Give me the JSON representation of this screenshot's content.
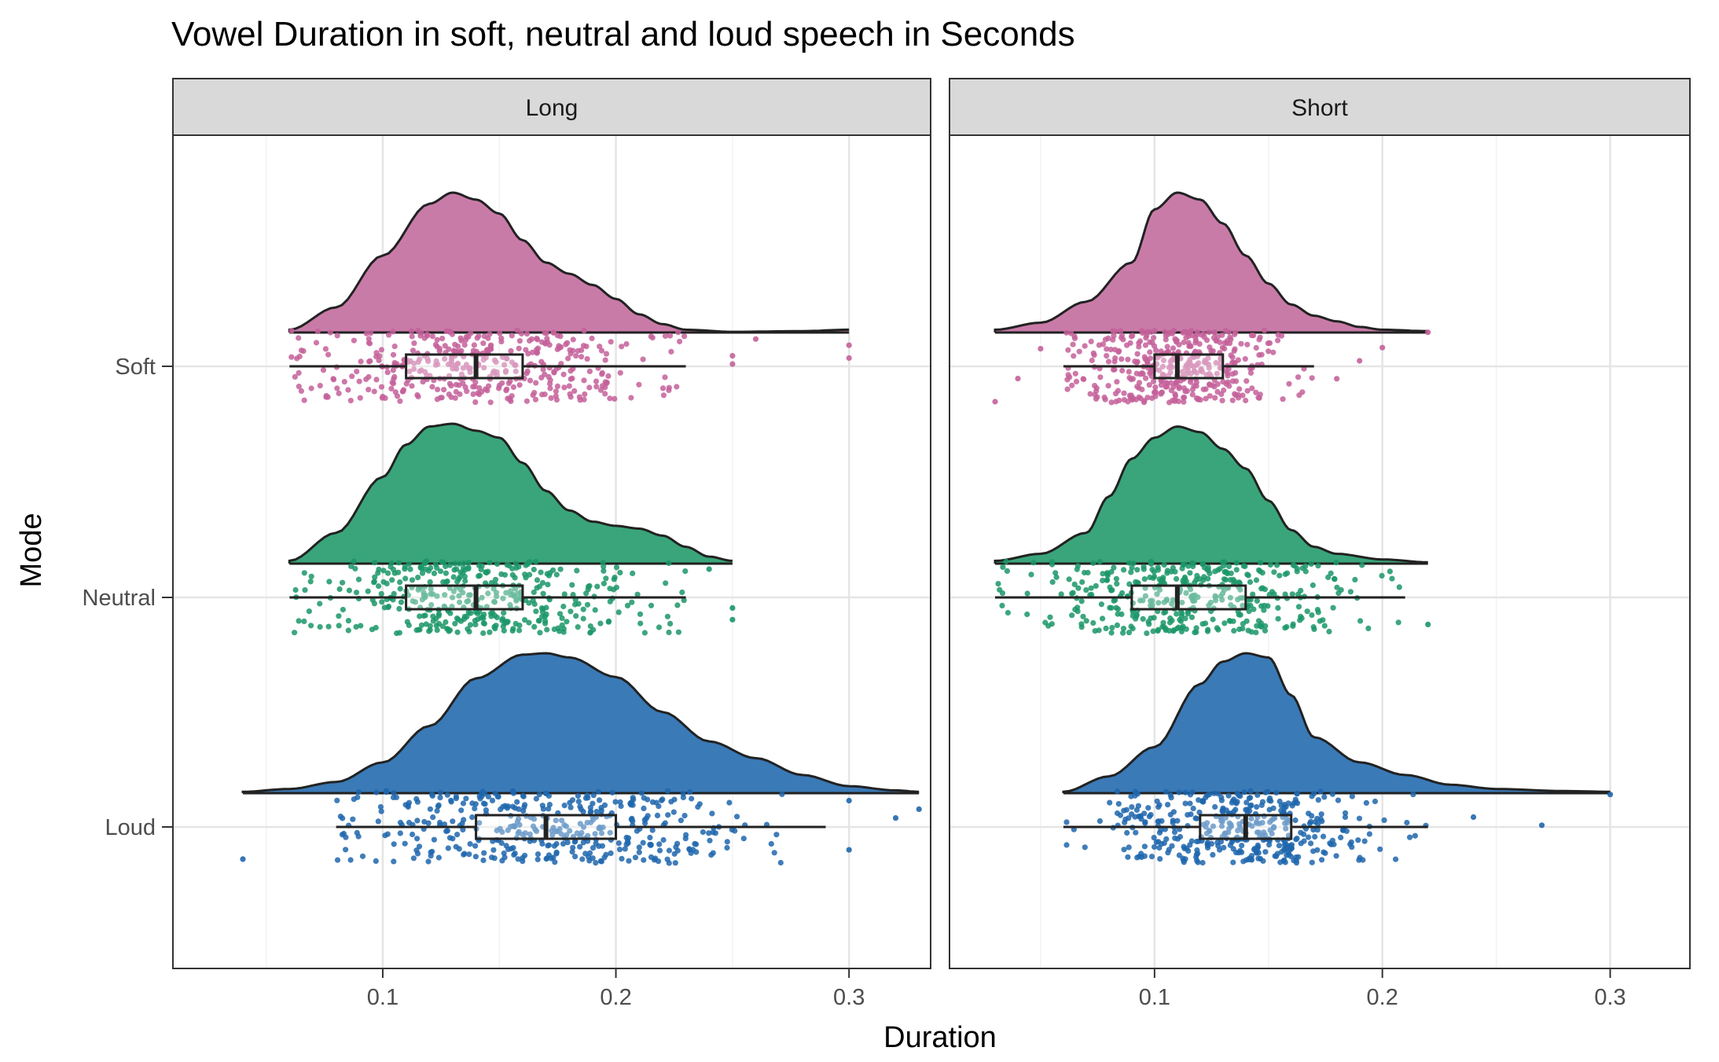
{
  "chart_data": {
    "type": "raincloud",
    "title": "Vowel Duration in soft, neutral and loud speech in Seconds",
    "xlabel": "Duration",
    "ylabel": "Mode",
    "xlim": [
      0.01,
      0.335
    ],
    "x_ticks": [
      0.1,
      0.2,
      0.3
    ],
    "x_tick_labels": [
      "0.1",
      "0.2",
      "0.3"
    ],
    "categories": [
      "Soft",
      "Neutral",
      "Loud"
    ],
    "colors": {
      "Soft": "#c4609a",
      "Neutral": "#1b9668",
      "Loud": "#1f66ad"
    },
    "cloud_colors": {
      "Soft": "#c97ba8",
      "Neutral": "#3aa57a",
      "Loud": "#3a7ab7"
    },
    "grid": true,
    "legend": "none",
    "panels": [
      {
        "label": "Long",
        "series": [
          {
            "name": "Soft",
            "box": {
              "whisker_low": 0.06,
              "q1": 0.11,
              "median": 0.14,
              "q3": 0.16,
              "whisker_high": 0.23
            },
            "density_range": [
              0.06,
              0.3
            ],
            "density_profile": [
              [
                0.06,
                0.02
              ],
              [
                0.08,
                0.18
              ],
              [
                0.1,
                0.55
              ],
              [
                0.12,
                0.92
              ],
              [
                0.13,
                1.0
              ],
              [
                0.14,
                0.95
              ],
              [
                0.15,
                0.85
              ],
              [
                0.16,
                0.66
              ],
              [
                0.17,
                0.5
              ],
              [
                0.18,
                0.42
              ],
              [
                0.19,
                0.34
              ],
              [
                0.2,
                0.24
              ],
              [
                0.21,
                0.13
              ],
              [
                0.22,
                0.06
              ],
              [
                0.23,
                0.02
              ],
              [
                0.25,
                0.005
              ],
              [
                0.28,
                0.01
              ],
              [
                0.3,
                0.02
              ]
            ],
            "outliers": [
              0.25,
              0.25,
              0.26,
              0.3,
              0.3
            ]
          },
          {
            "name": "Neutral",
            "box": {
              "whisker_low": 0.06,
              "q1": 0.11,
              "median": 0.14,
              "q3": 0.16,
              "whisker_high": 0.23
            },
            "density_range": [
              0.06,
              0.25
            ],
            "density_profile": [
              [
                0.06,
                0.02
              ],
              [
                0.08,
                0.22
              ],
              [
                0.1,
                0.62
              ],
              [
                0.11,
                0.85
              ],
              [
                0.12,
                0.98
              ],
              [
                0.13,
                1.0
              ],
              [
                0.14,
                0.95
              ],
              [
                0.15,
                0.9
              ],
              [
                0.16,
                0.72
              ],
              [
                0.17,
                0.52
              ],
              [
                0.18,
                0.38
              ],
              [
                0.19,
                0.3
              ],
              [
                0.2,
                0.27
              ],
              [
                0.21,
                0.25
              ],
              [
                0.22,
                0.2
              ],
              [
                0.23,
                0.12
              ],
              [
                0.24,
                0.05
              ],
              [
                0.25,
                0.02
              ]
            ],
            "outliers": [
              0.24,
              0.25,
              0.25
            ]
          },
          {
            "name": "Loud",
            "box": {
              "whisker_low": 0.08,
              "q1": 0.14,
              "median": 0.17,
              "q3": 0.2,
              "whisker_high": 0.29
            },
            "density_range": [
              0.04,
              0.33
            ],
            "density_profile": [
              [
                0.04,
                0.01
              ],
              [
                0.06,
                0.03
              ],
              [
                0.08,
                0.08
              ],
              [
                0.1,
                0.22
              ],
              [
                0.12,
                0.48
              ],
              [
                0.14,
                0.82
              ],
              [
                0.16,
                0.99
              ],
              [
                0.17,
                1.0
              ],
              [
                0.18,
                0.97
              ],
              [
                0.2,
                0.83
              ],
              [
                0.22,
                0.58
              ],
              [
                0.24,
                0.37
              ],
              [
                0.26,
                0.25
              ],
              [
                0.28,
                0.13
              ],
              [
                0.3,
                0.05
              ],
              [
                0.32,
                0.02
              ],
              [
                0.33,
                0.01
              ]
            ],
            "outliers": [
              0.04,
              0.3,
              0.3,
              0.32,
              0.33
            ]
          }
        ]
      },
      {
        "label": "Short",
        "series": [
          {
            "name": "Soft",
            "box": {
              "whisker_low": 0.06,
              "q1": 0.1,
              "median": 0.11,
              "q3": 0.13,
              "whisker_high": 0.17
            },
            "density_range": [
              0.03,
              0.22
            ],
            "density_profile": [
              [
                0.03,
                0.02
              ],
              [
                0.05,
                0.07
              ],
              [
                0.07,
                0.22
              ],
              [
                0.09,
                0.5
              ],
              [
                0.1,
                0.88
              ],
              [
                0.11,
                1.0
              ],
              [
                0.12,
                0.95
              ],
              [
                0.13,
                0.78
              ],
              [
                0.14,
                0.55
              ],
              [
                0.15,
                0.35
              ],
              [
                0.16,
                0.2
              ],
              [
                0.17,
                0.12
              ],
              [
                0.18,
                0.08
              ],
              [
                0.19,
                0.04
              ],
              [
                0.2,
                0.02
              ],
              [
                0.22,
                0.01
              ]
            ],
            "outliers": [
              0.03,
              0.04,
              0.05,
              0.18,
              0.19,
              0.2,
              0.22
            ]
          },
          {
            "name": "Neutral",
            "box": {
              "whisker_low": 0.03,
              "q1": 0.09,
              "median": 0.11,
              "q3": 0.14,
              "whisker_high": 0.21
            },
            "density_range": [
              0.03,
              0.22
            ],
            "density_profile": [
              [
                0.03,
                0.02
              ],
              [
                0.05,
                0.07
              ],
              [
                0.07,
                0.22
              ],
              [
                0.08,
                0.48
              ],
              [
                0.09,
                0.75
              ],
              [
                0.1,
                0.9
              ],
              [
                0.11,
                0.98
              ],
              [
                0.12,
                0.94
              ],
              [
                0.13,
                0.82
              ],
              [
                0.14,
                0.68
              ],
              [
                0.15,
                0.45
              ],
              [
                0.16,
                0.24
              ],
              [
                0.17,
                0.12
              ],
              [
                0.18,
                0.07
              ],
              [
                0.2,
                0.03
              ],
              [
                0.22,
                0.01
              ]
            ],
            "outliers": [
              0.22
            ]
          },
          {
            "name": "Loud",
            "box": {
              "whisker_low": 0.06,
              "q1": 0.12,
              "median": 0.14,
              "q3": 0.16,
              "whisker_high": 0.22
            },
            "density_range": [
              0.06,
              0.3
            ],
            "density_profile": [
              [
                0.06,
                0.01
              ],
              [
                0.08,
                0.12
              ],
              [
                0.1,
                0.33
              ],
              [
                0.12,
                0.78
              ],
              [
                0.13,
                0.94
              ],
              [
                0.14,
                1.0
              ],
              [
                0.15,
                0.97
              ],
              [
                0.16,
                0.7
              ],
              [
                0.17,
                0.4
              ],
              [
                0.19,
                0.22
              ],
              [
                0.21,
                0.13
              ],
              [
                0.23,
                0.06
              ],
              [
                0.25,
                0.03
              ],
              [
                0.28,
                0.015
              ],
              [
                0.3,
                0.01
              ]
            ],
            "outliers": [
              0.24,
              0.27,
              0.3
            ]
          }
        ]
      }
    ]
  }
}
